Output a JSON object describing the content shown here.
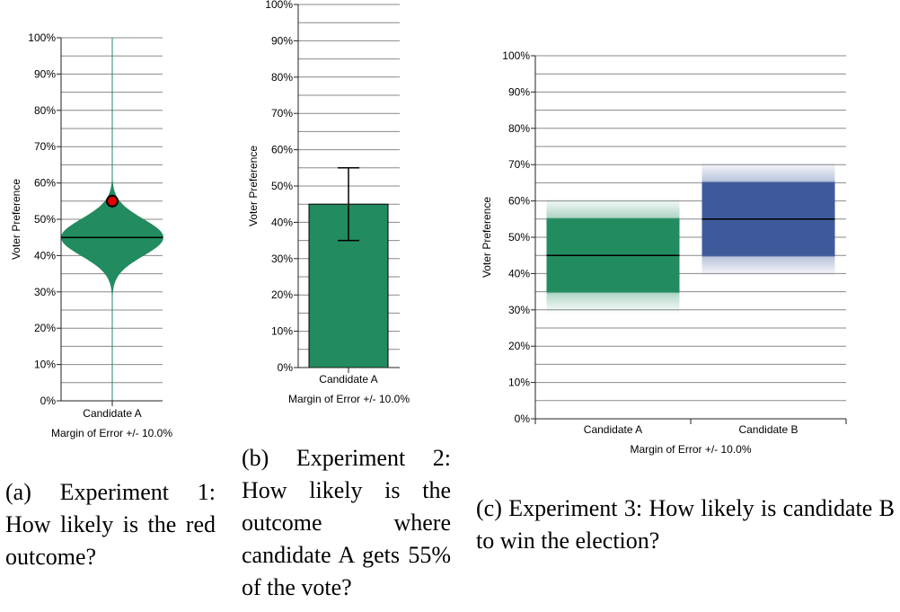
{
  "colors": {
    "green": "#228B5F",
    "blue": "#3E5A9B",
    "red": "#E00000",
    "grid": "#888888",
    "axis": "#222222"
  },
  "captions": {
    "a": "(a) Experiment 1: How likely is the red outcome?",
    "b": "(b) Experiment 2: How likely is the outcome where candidate A gets 55% of the vote?",
    "c": "(c) Experiment 3: How likely is candidate B to win the election?"
  },
  "chart_data": [
    {
      "id": "a",
      "type": "violin",
      "title": "",
      "ylabel": "Voter Preference",
      "xlabel": "Margin of Error +/- 10.0%",
      "ylim": [
        0,
        100
      ],
      "yticks": [
        "0%",
        "10%",
        "20%",
        "30%",
        "40%",
        "50%",
        "60%",
        "70%",
        "80%",
        "90%",
        "100%"
      ],
      "categories": [
        "Candidate A"
      ],
      "series": [
        {
          "name": "Candidate A",
          "mean": 45,
          "margin": 10,
          "min": 29,
          "max": 61
        }
      ],
      "highlight": {
        "value": 55,
        "label": "red outcome"
      }
    },
    {
      "id": "b",
      "type": "bar",
      "title": "",
      "ylabel": "Voter Preference",
      "xlabel": "Margin of Error +/- 10.0%",
      "ylim": [
        0,
        100
      ],
      "yticks": [
        "0%",
        "10%",
        "20%",
        "30%",
        "40%",
        "50%",
        "60%",
        "70%",
        "80%",
        "90%",
        "100%"
      ],
      "categories": [
        "Candidate A"
      ],
      "values": [
        45
      ],
      "errors": [
        [
          35,
          55
        ]
      ]
    },
    {
      "id": "c",
      "type": "gradient-band",
      "title": "",
      "ylabel": "Voter Preference",
      "xlabel": "Margin of Error +/- 10.0%",
      "ylim": [
        0,
        100
      ],
      "yticks": [
        "0%",
        "10%",
        "20%",
        "30%",
        "40%",
        "50%",
        "60%",
        "70%",
        "80%",
        "90%",
        "100%"
      ],
      "categories": [
        "Candidate A",
        "Candidate B"
      ],
      "series": [
        {
          "name": "Candidate A",
          "mean": 45,
          "margin": 10,
          "color": "#228B5F"
        },
        {
          "name": "Candidate B",
          "mean": 55,
          "margin": 10,
          "color": "#3E5A9B"
        }
      ]
    }
  ]
}
